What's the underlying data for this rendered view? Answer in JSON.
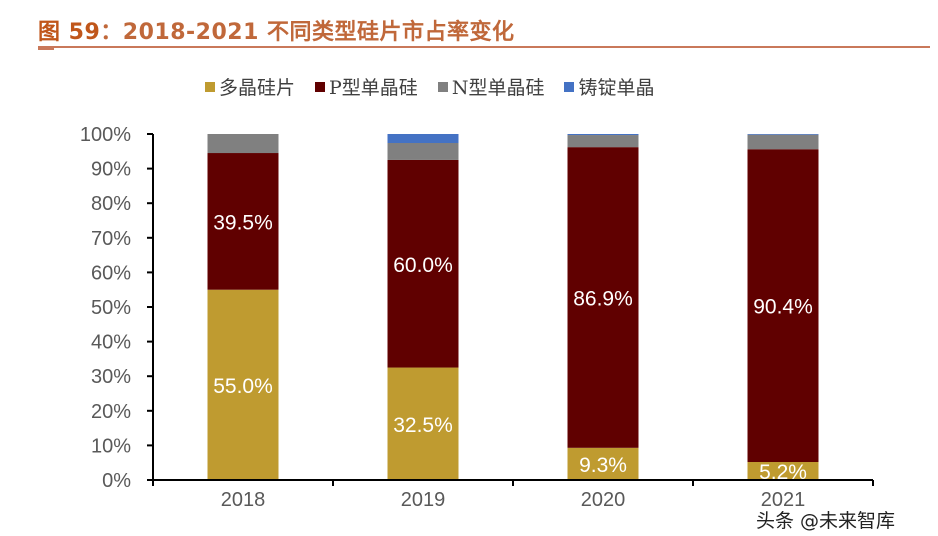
{
  "header": {
    "figure_label": "图 59",
    "title_text": "：2018-2021 不同类型硅片市占率变化"
  },
  "watermark": "头条 @未来智库",
  "chart_data": {
    "type": "bar",
    "stacked": true,
    "title": "2018-2021 不同类型硅片市占率变化",
    "xlabel": "",
    "ylabel": "",
    "categories": [
      "2018",
      "2019",
      "2020",
      "2021"
    ],
    "ylim": [
      0,
      100
    ],
    "yticks": [
      "0%",
      "10%",
      "20%",
      "30%",
      "40%",
      "50%",
      "60%",
      "70%",
      "80%",
      "90%",
      "100%"
    ],
    "grid": false,
    "legend_position": "top",
    "series": [
      {
        "name": "多晶硅片",
        "color": "#bf9b30",
        "values": [
          55.0,
          32.5,
          9.3,
          5.2
        ],
        "labels": [
          "55.0%",
          "32.5%",
          "9.3%",
          "5.2%"
        ]
      },
      {
        "name": "P型单晶硅",
        "color": "#600000",
        "values": [
          39.5,
          60.0,
          86.9,
          90.4
        ],
        "labels": [
          "39.5%",
          "60.0%",
          "86.9%",
          "90.4%"
        ]
      },
      {
        "name": "N型单晶硅",
        "color": "#808080",
        "values": [
          5.5,
          4.9,
          3.5,
          4.2
        ],
        "labels": [
          "",
          "",
          "",
          ""
        ]
      },
      {
        "name": "铸锭单晶",
        "color": "#4472c4",
        "values": [
          0.0,
          2.6,
          0.3,
          0.2
        ],
        "labels": [
          "",
          "",
          "",
          ""
        ]
      }
    ]
  }
}
